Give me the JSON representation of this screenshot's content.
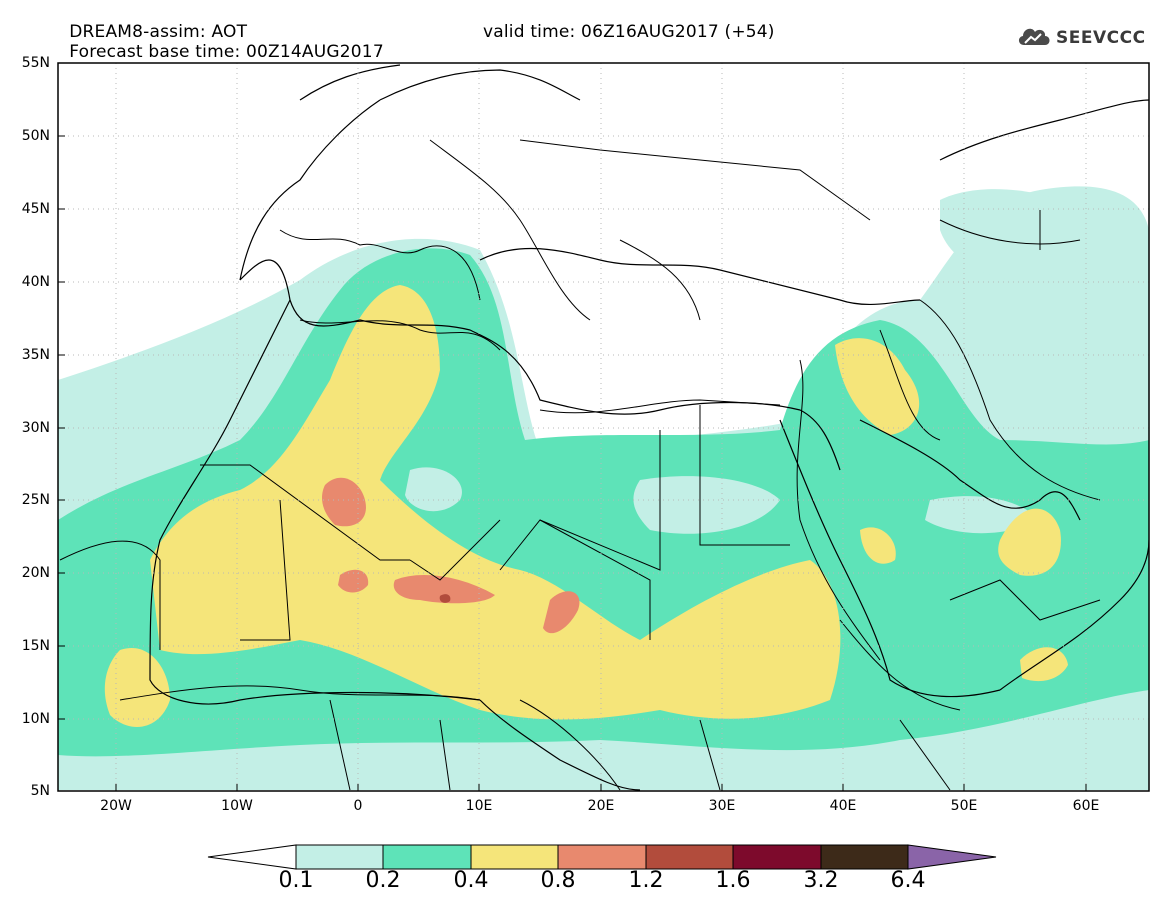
{
  "title": {
    "model_line": "DREAM8-assim: AOT",
    "base_time": "Forecast base time: 00Z14AUG2017",
    "valid_time": "valid time: 06Z16AUG2017 (+54)"
  },
  "logo": {
    "text": "SEEVCCC",
    "icon": "cloud-icon"
  },
  "map": {
    "lat_labels": [
      "55N",
      "50N",
      "45N",
      "40N",
      "35N",
      "30N",
      "25N",
      "20N",
      "15N",
      "10N",
      "5N"
    ],
    "lon_labels": [
      "20W",
      "10W",
      "0",
      "10E",
      "20E",
      "30E",
      "40E",
      "50E",
      "60E"
    ]
  },
  "colorbar": {
    "labels": [
      "0.1",
      "0.2",
      "0.4",
      "0.8",
      "1.2",
      "1.6",
      "3.2",
      "6.4"
    ],
    "colors": [
      "#ffffff",
      "#c3efe6",
      "#5ee3b8",
      "#f5e57a",
      "#e8896e",
      "#b24c3c",
      "#7d0a2c",
      "#3d2a19",
      "#8a64a8"
    ]
  }
}
